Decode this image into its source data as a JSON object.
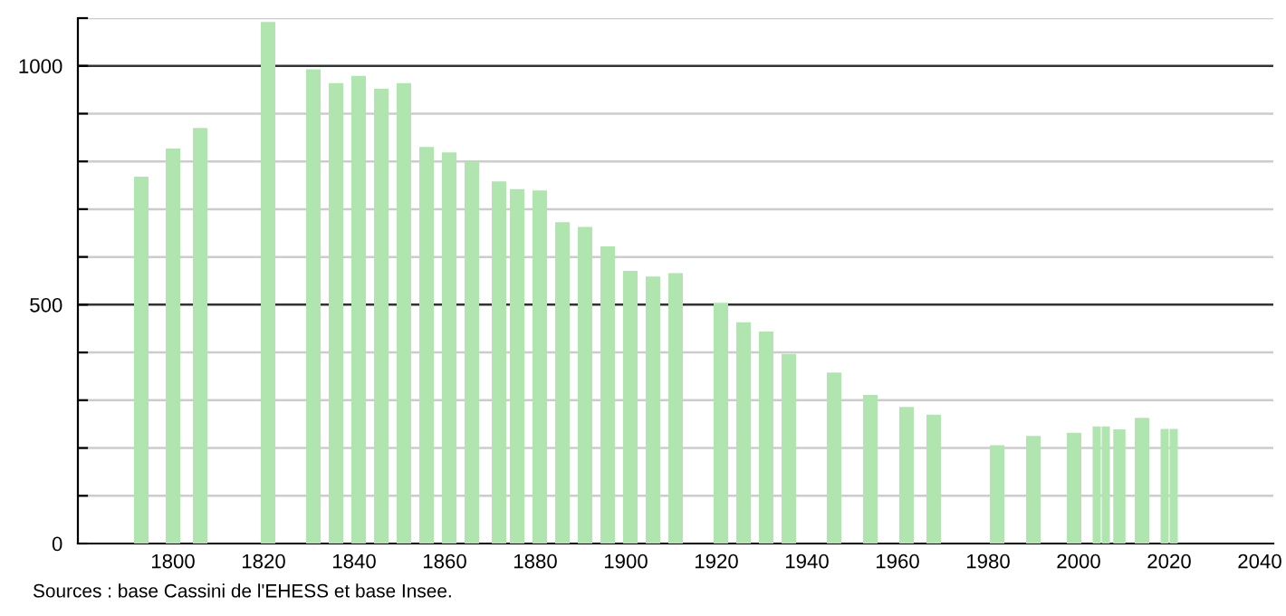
{
  "chart_data": {
    "type": "bar",
    "x": [
      1793,
      1800,
      1806,
      1821,
      1831,
      1836,
      1841,
      1846,
      1851,
      1856,
      1861,
      1866,
      1872,
      1876,
      1881,
      1886,
      1891,
      1896,
      1901,
      1906,
      1911,
      1921,
      1926,
      1931,
      1936,
      1946,
      1954,
      1962,
      1968,
      1982,
      1990,
      1999,
      2004,
      2006,
      2009,
      2014,
      2019,
      2021
    ],
    "values": [
      768,
      827,
      870,
      1092,
      993,
      964,
      979,
      952,
      964,
      830,
      819,
      800,
      758,
      742,
      739,
      673,
      663,
      622,
      571,
      559,
      566,
      504,
      463,
      444,
      397,
      358,
      311,
      286,
      270,
      206,
      225,
      232,
      245,
      245,
      239,
      263,
      240,
      240
    ],
    "color": "#b0e5b0",
    "xlim": [
      1779,
      2043
    ],
    "xticks": [
      1800,
      1820,
      1840,
      1860,
      1880,
      1900,
      1920,
      1940,
      1960,
      1980,
      2000,
      2020,
      2040
    ],
    "ylim": [
      0,
      1100
    ],
    "yticks": [
      0,
      {
        "value": 100,
        "label": null
      },
      {
        "value": 200,
        "label": null
      },
      {
        "value": 300,
        "label": null
      },
      {
        "value": 400,
        "label": null
      },
      500,
      {
        "value": 600,
        "label": null
      },
      {
        "value": 700,
        "label": null
      },
      {
        "value": 800,
        "label": null
      },
      {
        "value": 900,
        "label": null
      },
      1000,
      {
        "value": 1100,
        "label": null
      }
    ],
    "grid": "y",
    "annotations": [
      "Sources : base Cassini de l'EHESS et base Insee."
    ]
  }
}
